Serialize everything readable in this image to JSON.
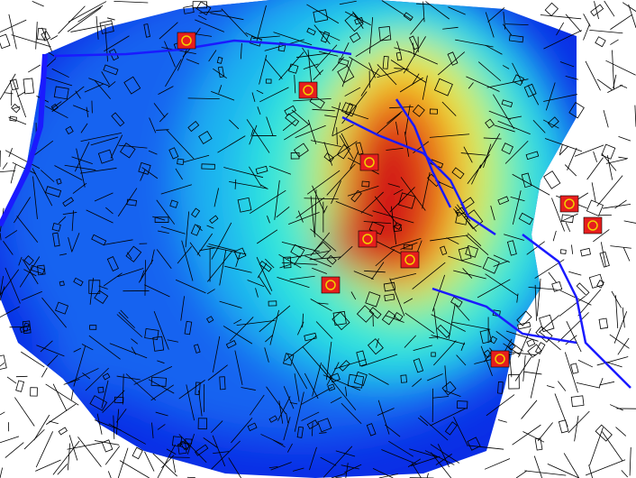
{
  "map": {
    "type": "heatmap-overlay-on-street-plan",
    "color_scale": [
      "#0a1ee6",
      "#1464f0",
      "#1eb4f0",
      "#2de6dc",
      "#8cf08c",
      "#f0f032",
      "#f0a01e",
      "#e6501e",
      "#d21414"
    ],
    "linework_color": "#000000",
    "waterway_color": "#1a1aff",
    "marker_color": "#e61e1e",
    "marker_ring_color": "#f0d200",
    "hotspot_count": 9
  }
}
